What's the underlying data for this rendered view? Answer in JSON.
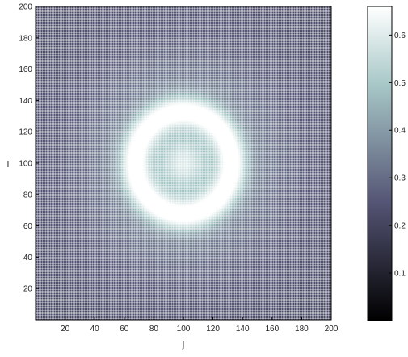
{
  "chart_data": {
    "type": "heatmap",
    "title": "",
    "xlabel": "j",
    "ylabel": "i",
    "xlim": [
      0,
      200
    ],
    "ylim": [
      0,
      200
    ],
    "x_ticks": [
      20,
      40,
      60,
      80,
      100,
      120,
      140,
      160,
      180,
      200
    ],
    "y_ticks": [
      20,
      40,
      60,
      80,
      100,
      120,
      140,
      160,
      180,
      200
    ],
    "colormap": "bone",
    "color_range": [
      0,
      0.66
    ],
    "colorbar_ticks": [
      0.1,
      0.2,
      0.3,
      0.4,
      0.5,
      0.6
    ],
    "pattern": {
      "center": [
        100,
        100
      ],
      "center_peak": 0.55,
      "ring_radius": 33,
      "ring_peak": 0.66,
      "background": 0.22,
      "grid_overlay": true
    }
  }
}
